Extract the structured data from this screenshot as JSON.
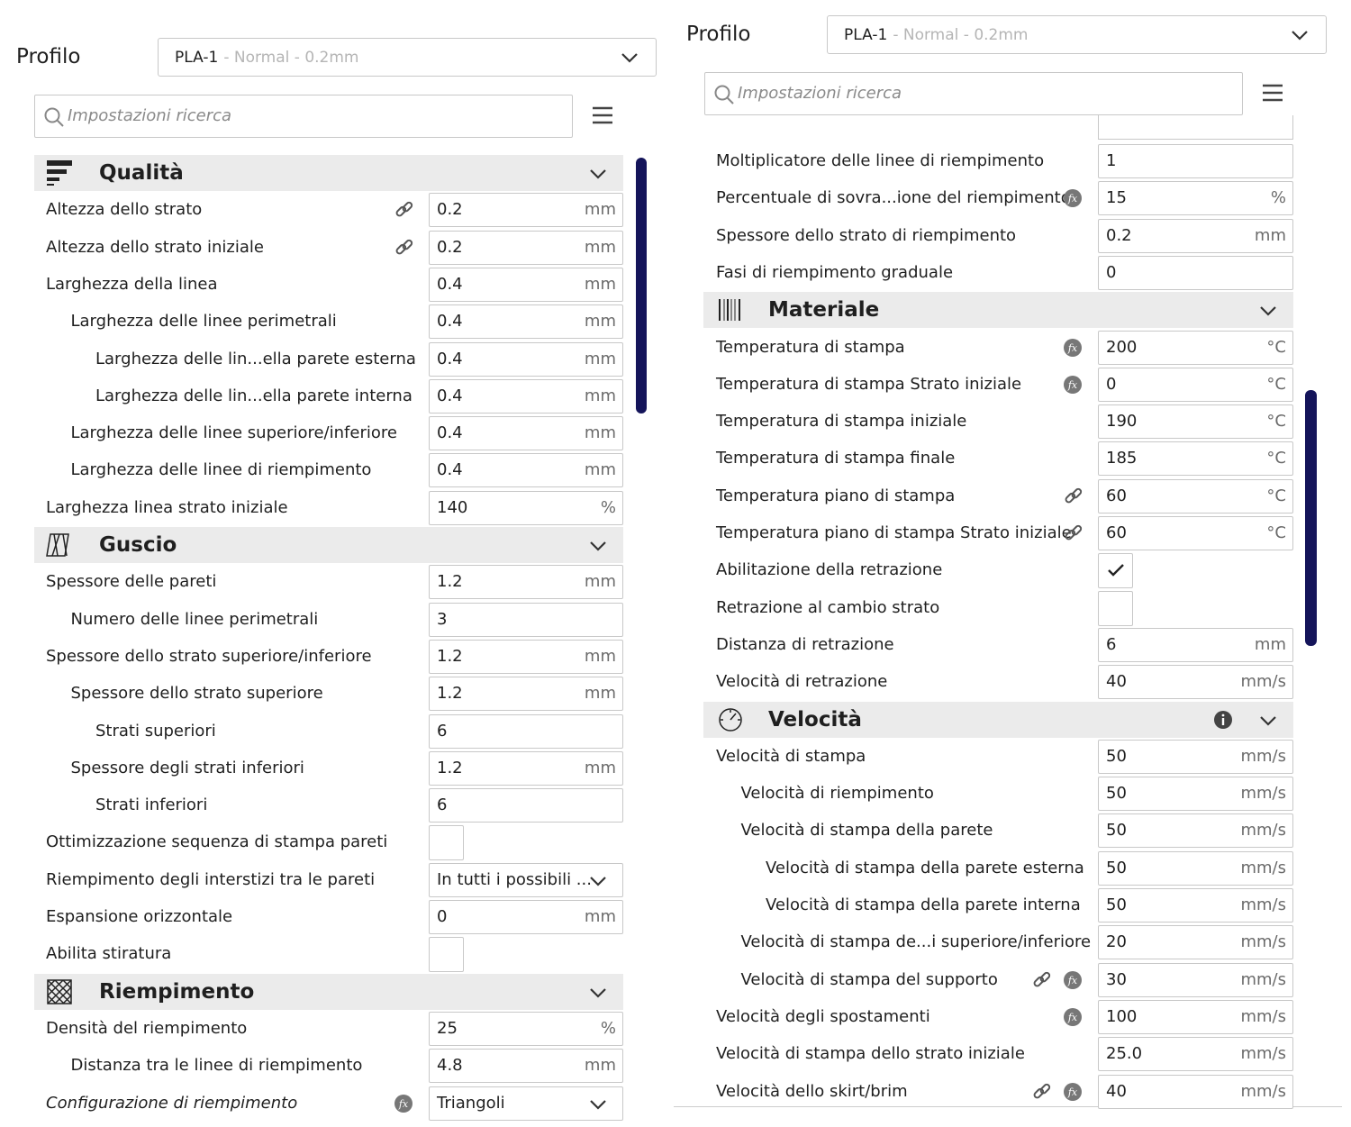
{
  "panels": [
    {
      "profile_label": "Profilo",
      "profile_name": "PLA-1",
      "profile_detail": "- Normal - 0.2mm",
      "search_placeholder": "Impostazioni ricerca",
      "rows": [
        {
          "section": "Qualità"
        },
        {
          "label": "Altezza dello strato",
          "value": "0.2",
          "unit": "mm",
          "linked": true
        },
        {
          "label": "Altezza dello strato iniziale",
          "value": "0.2",
          "unit": "mm",
          "linked": true
        },
        {
          "label": "Larghezza della linea",
          "value": "0.4",
          "unit": "mm",
          "children": [
            {
              "label": "Larghezza delle linee perimetrali",
              "value": "0.4",
              "unit": "mm",
              "children": [
                {
                  "label": "Larghezza delle lin...ella parete esterna",
                  "value": "0.4",
                  "unit": "mm"
                },
                {
                  "label": "Larghezza delle lin...ella parete interna",
                  "value": "0.4",
                  "unit": "mm"
                }
              ]
            },
            {
              "label": "Larghezza delle linee superiore/inferiore",
              "value": "0.4",
              "unit": "mm"
            },
            {
              "label": "Larghezza delle linee di riempimento",
              "value": "0.4",
              "unit": "mm"
            }
          ]
        },
        {
          "label": "Larghezza linea strato iniziale",
          "value": "140",
          "unit": "%"
        },
        {
          "section": "Guscio"
        },
        {
          "label": "Spessore delle pareti",
          "value": "1.2",
          "unit": "mm",
          "children": [
            {
              "label": "Numero delle linee perimetrali",
              "value": "3"
            }
          ]
        },
        {
          "label": "Spessore dello strato superiore/inferiore",
          "value": "1.2",
          "unit": "mm",
          "children": [
            {
              "label": "Spessore dello strato superiore",
              "value": "1.2",
              "unit": "mm",
              "children": [
                {
                  "label": "Strati superiori",
                  "value": "6"
                }
              ]
            },
            {
              "label": "Spessore degli strati inferiori",
              "value": "1.2",
              "unit": "mm",
              "children": [
                {
                  "label": "Strati inferiori",
                  "value": "6"
                }
              ]
            }
          ]
        },
        {
          "label": "Ottimizzazione sequenza di stampa pareti",
          "checked": false
        },
        {
          "label": "Riempimento degli interstizi tra le pareti",
          "value": "In tutti i possibili ...",
          "dropdown": true
        },
        {
          "label": "Espansione orizzontale",
          "value": "0",
          "unit": "mm"
        },
        {
          "label": "Abilita stiratura",
          "checked": false
        },
        {
          "section": "Riempimento"
        },
        {
          "label": "Densità del riempimento",
          "value": "25",
          "unit": "%",
          "children": [
            {
              "label": "Distanza tra le linee di riempimento",
              "value": "4.8",
              "unit": "mm"
            }
          ]
        },
        {
          "label": "Configurazione di riempimento",
          "value": "Triangoli",
          "dropdown": true,
          "formula": true,
          "italic": true
        }
      ]
    },
    {
      "profile_label": "Profilo",
      "profile_name": "PLA-1",
      "profile_detail": "- Normal - 0.2mm",
      "search_placeholder": "Impostazioni ricerca",
      "rows": [
        {
          "label": "Moltiplicatore delle linee di riempimento",
          "value": "1"
        },
        {
          "label": "Percentuale di sovra...ione del riempimento",
          "value": "15",
          "unit": "%",
          "formula": true
        },
        {
          "label": "Spessore dello strato di riempimento",
          "value": "0.2",
          "unit": "mm"
        },
        {
          "label": "Fasi di riempimento graduale",
          "value": "0"
        },
        {
          "section": "Materiale"
        },
        {
          "label": "Temperatura di stampa",
          "value": "200",
          "unit": "°C",
          "formula": true
        },
        {
          "label": "Temperatura di stampa Strato iniziale",
          "value": "0",
          "unit": "°C",
          "formula": true
        },
        {
          "label": "Temperatura di stampa iniziale",
          "value": "190",
          "unit": "°C"
        },
        {
          "label": "Temperatura di stampa finale",
          "value": "185",
          "unit": "°C"
        },
        {
          "label": "Temperatura piano di stampa",
          "value": "60",
          "unit": "°C",
          "linked": true
        },
        {
          "label": "Temperatura piano di stampa Strato iniziale",
          "value": "60",
          "unit": "°C",
          "linked": true
        },
        {
          "label": "Abilitazione della retrazione",
          "checked": true
        },
        {
          "label": "Retrazione al cambio strato",
          "checked": false
        },
        {
          "label": "Distanza di retrazione",
          "value": "6",
          "unit": "mm"
        },
        {
          "label": "Velocità di retrazione",
          "value": "40",
          "unit": "mm/s"
        },
        {
          "section": "Velocità",
          "info": true
        },
        {
          "label": "Velocità di stampa",
          "value": "50",
          "unit": "mm/s",
          "children": [
            {
              "label": "Velocità di riempimento",
              "value": "50",
              "unit": "mm/s"
            },
            {
              "label": "Velocità di stampa della parete",
              "value": "50",
              "unit": "mm/s",
              "children": [
                {
                  "label": "Velocità di stampa della parete esterna",
                  "value": "50",
                  "unit": "mm/s"
                },
                {
                  "label": "Velocità di stampa della parete interna",
                  "value": "50",
                  "unit": "mm/s"
                }
              ]
            },
            {
              "label": "Velocità di stampa de...i superiore/inferiore",
              "value": "20",
              "unit": "mm/s"
            },
            {
              "label": "Velocità di stampa del supporto",
              "value": "30",
              "unit": "mm/s",
              "linked": true,
              "formula": true
            }
          ]
        },
        {
          "label": "Velocità degli spostamenti",
          "value": "100",
          "unit": "mm/s",
          "formula": true
        },
        {
          "label": "Velocità di stampa dello strato iniziale",
          "value": "25.0",
          "unit": "mm/s"
        },
        {
          "label": "Velocità dello skirt/brim",
          "value": "40",
          "unit": "mm/s",
          "linked": true,
          "formula": true
        }
      ]
    }
  ]
}
